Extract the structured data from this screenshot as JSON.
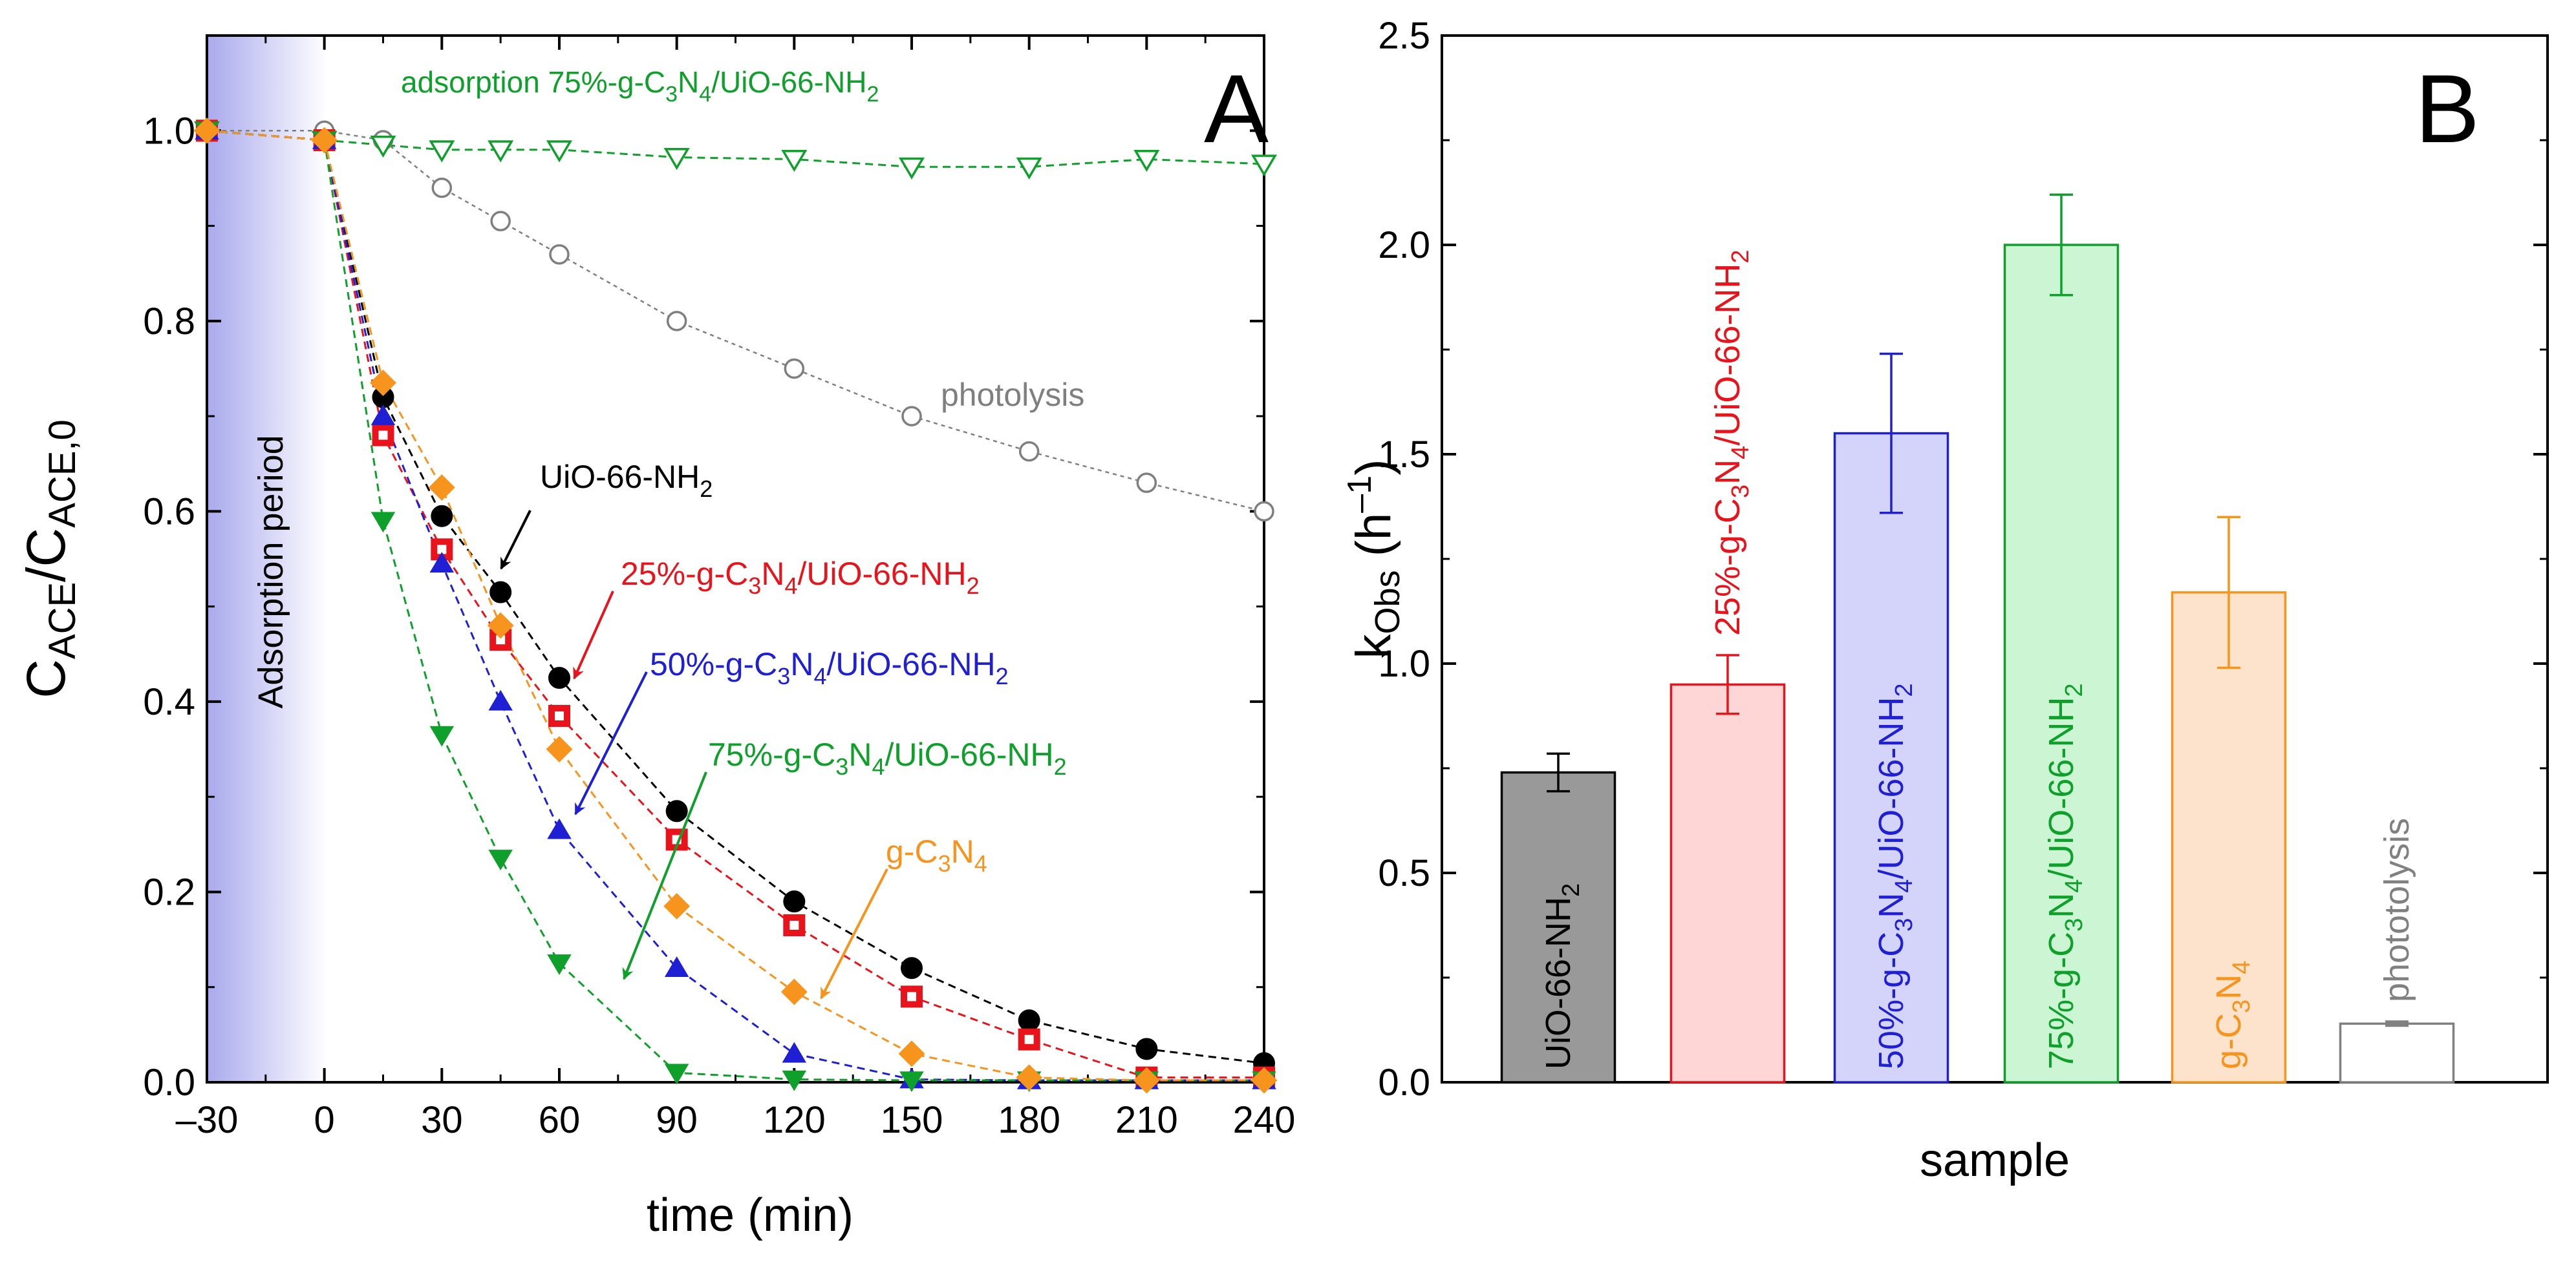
{
  "figure": {
    "colors": {
      "black": "#000000",
      "red": "#e8131b",
      "blue": "#1f1fd4",
      "green": "#0ea02a",
      "orange": "#f7941d",
      "gray": "#7f7f7f",
      "adsorptionShade": "#b9b9f2"
    }
  },
  "chart_data": [
    {
      "panel": "A",
      "type": "line",
      "panel_letter": "A",
      "xlabel": "time (min)",
      "ylabel": {
        "main": "C",
        "sub1": "ACE",
        "slash": "/C",
        "sub2": "ACE,0"
      },
      "xlim": [
        -30,
        240
      ],
      "ylim": [
        0,
        1.1
      ],
      "xticks": [
        -30,
        0,
        30,
        60,
        90,
        120,
        150,
        180,
        210,
        240
      ],
      "yticks": [
        0.0,
        0.2,
        0.4,
        0.6,
        0.8,
        1.0
      ],
      "ytick_labels": [
        "0.0",
        "0.2",
        "0.4",
        "0.6",
        "0.8",
        "1.0"
      ],
      "xtick_labels": [
        "–30",
        "0",
        "30",
        "60",
        "90",
        "120",
        "150",
        "180",
        "210",
        "240"
      ],
      "adsorption_period": {
        "from": -30,
        "to": 0,
        "label": "Adsorption period"
      },
      "series": [
        {
          "key": "photolysis",
          "color": "gray",
          "marker": "circle-open",
          "x": [
            -30,
            0,
            15,
            30,
            45,
            60,
            90,
            120,
            150,
            180,
            210,
            240
          ],
          "y": [
            1.0,
            1.0,
            0.99,
            0.94,
            0.905,
            0.87,
            0.8,
            0.75,
            0.7,
            0.663,
            0.63,
            0.6
          ]
        },
        {
          "key": "adsorption75",
          "color": "green",
          "marker": "triangle-down-open",
          "x": [
            -30,
            0,
            15,
            30,
            45,
            60,
            90,
            120,
            150,
            180,
            210,
            240
          ],
          "y": [
            1.0,
            0.99,
            0.985,
            0.98,
            0.98,
            0.98,
            0.972,
            0.97,
            0.962,
            0.962,
            0.97,
            0.965
          ]
        },
        {
          "key": "uio",
          "color": "black",
          "marker": "circle-filled",
          "x": [
            -30,
            0,
            15,
            30,
            45,
            60,
            90,
            120,
            150,
            180,
            210,
            240
          ],
          "y": [
            1.0,
            0.99,
            0.72,
            0.595,
            0.515,
            0.425,
            0.285,
            0.19,
            0.12,
            0.065,
            0.035,
            0.02
          ]
        },
        {
          "key": "c25",
          "color": "red",
          "marker": "square-filled-center",
          "x": [
            -30,
            0,
            15,
            30,
            45,
            60,
            90,
            120,
            150,
            180,
            210,
            240
          ],
          "y": [
            1.0,
            0.99,
            0.68,
            0.56,
            0.465,
            0.385,
            0.255,
            0.165,
            0.09,
            0.045,
            0.005,
            0.005
          ]
        },
        {
          "key": "c50",
          "color": "blue",
          "marker": "triangle-up-filled",
          "x": [
            -30,
            0,
            15,
            30,
            45,
            60,
            90,
            120,
            150,
            180,
            210,
            240
          ],
          "y": [
            1.0,
            0.99,
            0.7,
            0.545,
            0.4,
            0.265,
            0.12,
            0.03,
            0.003,
            0.002,
            0.002,
            0.002
          ]
        },
        {
          "key": "c75",
          "color": "green",
          "marker": "triangle-down-filled",
          "x": [
            -30,
            0,
            15,
            30,
            45,
            60,
            90,
            120,
            150,
            180,
            210,
            240
          ],
          "y": [
            1.0,
            0.99,
            0.59,
            0.365,
            0.235,
            0.125,
            0.01,
            0.003,
            0.002,
            0.002,
            0.002,
            0.002
          ]
        },
        {
          "key": "gcn",
          "color": "orange",
          "marker": "diamond-filled",
          "x": [
            -30,
            0,
            15,
            30,
            45,
            60,
            90,
            120,
            150,
            180,
            210,
            240
          ],
          "y": [
            1.0,
            0.99,
            0.735,
            0.625,
            0.48,
            0.35,
            0.185,
            0.095,
            0.03,
            0.005,
            0.002,
            0.002
          ]
        }
      ],
      "annotations": [
        {
          "key": "adsorption75",
          "color": "green",
          "parts": [
            "adsorption 75%-g-C",
            "3",
            "N",
            "4",
            "/UiO-66-NH",
            "2"
          ]
        },
        {
          "key": "photolysis",
          "color": "gray",
          "parts": [
            "photolysis"
          ]
        },
        {
          "key": "uio",
          "color": "black",
          "parts": [
            "UiO-66-NH",
            "2"
          ]
        },
        {
          "key": "c25",
          "color": "red",
          "parts": [
            "25%-g-C",
            "3",
            "N",
            "4",
            "/UiO-66-NH",
            "2"
          ]
        },
        {
          "key": "c50",
          "color": "blue",
          "parts": [
            "50%-g-C",
            "3",
            "N",
            "4",
            "/UiO-66-NH",
            "2"
          ]
        },
        {
          "key": "c75",
          "color": "green",
          "parts": [
            "75%-g-C",
            "3",
            "N",
            "4",
            "/UiO-66-NH",
            "2"
          ]
        },
        {
          "key": "gcn",
          "color": "orange",
          "parts": [
            "g-C",
            "3",
            "N",
            "4"
          ]
        }
      ]
    },
    {
      "panel": "B",
      "type": "bar",
      "panel_letter": "B",
      "xlabel": "sample",
      "ylabel": {
        "main": "k",
        "sub": "Obs",
        "unit_open": " (h",
        "sup": "–1",
        "unit_close": ")"
      },
      "ylim": [
        0,
        2.5
      ],
      "yticks": [
        0.0,
        0.5,
        1.0,
        1.5,
        2.0,
        2.5
      ],
      "ytick_labels": [
        "0.0",
        "0.5",
        "1.0",
        "1.5",
        "2.0",
        "2.5"
      ],
      "bars": [
        {
          "key": "uio",
          "value": 0.74,
          "error": 0.045,
          "fill": "#999999",
          "stroke": "#000000",
          "text_color": "#000000",
          "label_parts": [
            "UiO-66-NH",
            "2"
          ],
          "label_inside": true
        },
        {
          "key": "c25",
          "value": 0.95,
          "error": 0.07,
          "fill": "#ffd6d6",
          "stroke": "#e8131b",
          "text_color": "#e8131b",
          "label_parts": [
            "25%-g-C",
            "3",
            "N",
            "4",
            "/UiO-66-NH",
            "2"
          ],
          "label_inside": false
        },
        {
          "key": "c50",
          "value": 1.55,
          "error": 0.19,
          "fill": "#d4d4fb",
          "stroke": "#1f1fd4",
          "text_color": "#1f1fd4",
          "label_parts": [
            "50%-g-C",
            "3",
            "N",
            "4",
            "/UiO-66-NH",
            "2"
          ],
          "label_inside": true
        },
        {
          "key": "c75",
          "value": 2.0,
          "error": 0.12,
          "fill": "#ccf5d3",
          "stroke": "#0ea02a",
          "text_color": "#0ea02a",
          "label_parts": [
            "75%-g-C",
            "3",
            "N",
            "4",
            "/UiO-66-NH",
            "2"
          ],
          "label_inside": true
        },
        {
          "key": "gcn",
          "value": 1.17,
          "error": 0.18,
          "fill": "#fde3cc",
          "stroke": "#f7941d",
          "text_color": "#f7941d",
          "label_parts": [
            "g-C",
            "3",
            "N",
            "4"
          ],
          "label_inside": true
        },
        {
          "key": "phot",
          "value": 0.14,
          "error": 0.005,
          "fill": "#ffffff",
          "stroke": "#808080",
          "text_color": "#808080",
          "label_parts": [
            "phototolysis"
          ],
          "label_inside": false
        }
      ]
    }
  ]
}
